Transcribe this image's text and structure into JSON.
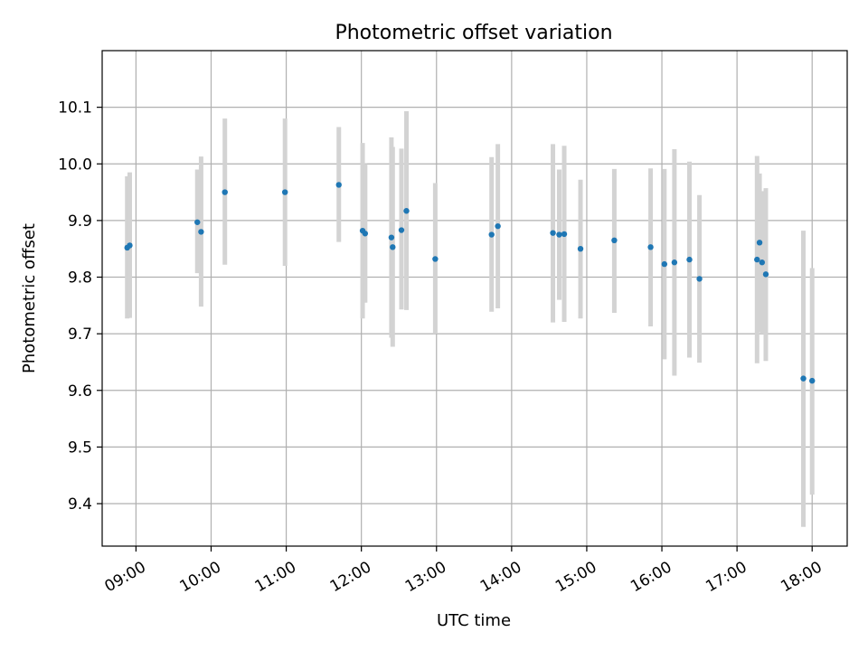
{
  "chart_data": {
    "type": "scatter",
    "title": "Photometric offset variation",
    "xlabel": "UTC time",
    "ylabel": "Photometric offset",
    "x_axis": "time (UTC)",
    "xlim": [
      "08:33",
      "18:28"
    ],
    "ylim": [
      9.325,
      10.2
    ],
    "grid": true,
    "x_ticks": [
      "09:00",
      "10:00",
      "11:00",
      "12:00",
      "13:00",
      "14:00",
      "15:00",
      "16:00",
      "17:00",
      "18:00"
    ],
    "y_ticks": [
      9.4,
      9.5,
      9.6,
      9.7,
      9.8,
      9.9,
      10.0,
      10.1
    ],
    "y_tick_labels": [
      "9.4",
      "9.5",
      "9.6",
      "9.7",
      "9.8",
      "9.9",
      "10.0",
      "10.1"
    ],
    "series": [
      {
        "marker_color": "#1f77b4",
        "errorbar_color": "#d3d3d3",
        "points": [
          {
            "x": "08:53",
            "y": 9.852,
            "low": 9.727,
            "high": 9.978
          },
          {
            "x": "08:55",
            "y": 9.856,
            "low": 9.728,
            "high": 9.985
          },
          {
            "x": "09:49",
            "y": 9.897,
            "low": 9.807,
            "high": 9.99
          },
          {
            "x": "09:52",
            "y": 9.88,
            "low": 9.748,
            "high": 10.013
          },
          {
            "x": "10:11",
            "y": 9.95,
            "low": 9.822,
            "high": 10.08
          },
          {
            "x": "10:59",
            "y": 9.95,
            "low": 9.82,
            "high": 10.08
          },
          {
            "x": "11:42",
            "y": 9.963,
            "low": 9.862,
            "high": 10.065
          },
          {
            "x": "12:01",
            "y": 9.882,
            "low": 9.727,
            "high": 10.037
          },
          {
            "x": "12:03",
            "y": 9.877,
            "low": 9.755,
            "high": 10.0
          },
          {
            "x": "12:24",
            "y": 9.87,
            "low": 9.693,
            "high": 10.047
          },
          {
            "x": "12:25",
            "y": 9.853,
            "low": 9.677,
            "high": 10.03
          },
          {
            "x": "12:32",
            "y": 9.883,
            "low": 9.743,
            "high": 10.027
          },
          {
            "x": "12:36",
            "y": 9.917,
            "low": 9.742,
            "high": 10.093
          },
          {
            "x": "12:59",
            "y": 9.832,
            "low": 9.7,
            "high": 9.966
          },
          {
            "x": "13:44",
            "y": 9.875,
            "low": 9.739,
            "high": 10.012
          },
          {
            "x": "13:49",
            "y": 9.89,
            "low": 9.745,
            "high": 10.035
          },
          {
            "x": "14:33",
            "y": 9.878,
            "low": 9.72,
            "high": 10.035
          },
          {
            "x": "14:38",
            "y": 9.875,
            "low": 9.76,
            "high": 9.99
          },
          {
            "x": "14:42",
            "y": 9.876,
            "low": 9.721,
            "high": 10.032
          },
          {
            "x": "14:55",
            "y": 9.85,
            "low": 9.727,
            "high": 9.972
          },
          {
            "x": "15:22",
            "y": 9.865,
            "low": 9.737,
            "high": 9.991
          },
          {
            "x": "15:51",
            "y": 9.853,
            "low": 9.713,
            "high": 9.992
          },
          {
            "x": "16:02",
            "y": 9.823,
            "low": 9.655,
            "high": 9.991
          },
          {
            "x": "16:10",
            "y": 9.826,
            "low": 9.626,
            "high": 10.026
          },
          {
            "x": "16:22",
            "y": 9.831,
            "low": 9.658,
            "high": 10.004
          },
          {
            "x": "16:30",
            "y": 9.797,
            "low": 9.649,
            "high": 9.945
          },
          {
            "x": "17:16",
            "y": 9.831,
            "low": 9.648,
            "high": 10.014
          },
          {
            "x": "17:18",
            "y": 9.861,
            "low": 9.703,
            "high": 9.983
          },
          {
            "x": "17:20",
            "y": 9.826,
            "low": 9.7,
            "high": 9.952
          },
          {
            "x": "17:23",
            "y": 9.805,
            "low": 9.652,
            "high": 9.957
          },
          {
            "x": "17:53",
            "y": 9.621,
            "low": 9.359,
            "high": 9.882
          },
          {
            "x": "18:00",
            "y": 9.617,
            "low": 9.416,
            "high": 9.816
          }
        ]
      }
    ]
  }
}
